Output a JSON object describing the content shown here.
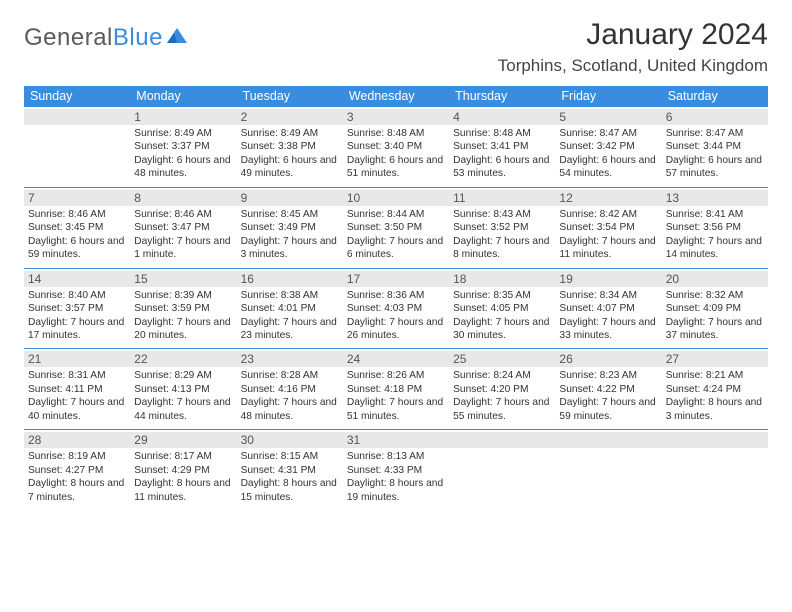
{
  "logo": {
    "word1": "General",
    "word2": "Blue"
  },
  "title": "January 2024",
  "location": "Torphins, Scotland, United Kingdom",
  "colors": {
    "header_bg": "#3a8dde",
    "header_text": "#ffffff",
    "daynum_bg": "#e8e8e8",
    "daynum_text": "#555555",
    "body_text": "#333333",
    "rule": "#3a8dde",
    "logo_gray": "#5a5a5a",
    "logo_blue": "#3a8dde"
  },
  "weekday_headers": [
    "Sunday",
    "Monday",
    "Tuesday",
    "Wednesday",
    "Thursday",
    "Friday",
    "Saturday"
  ],
  "weeks": [
    [
      null,
      {
        "n": "1",
        "sunrise": "8:49 AM",
        "sunset": "3:37 PM",
        "daylight": "6 hours and 48 minutes."
      },
      {
        "n": "2",
        "sunrise": "8:49 AM",
        "sunset": "3:38 PM",
        "daylight": "6 hours and 49 minutes."
      },
      {
        "n": "3",
        "sunrise": "8:48 AM",
        "sunset": "3:40 PM",
        "daylight": "6 hours and 51 minutes."
      },
      {
        "n": "4",
        "sunrise": "8:48 AM",
        "sunset": "3:41 PM",
        "daylight": "6 hours and 53 minutes."
      },
      {
        "n": "5",
        "sunrise": "8:47 AM",
        "sunset": "3:42 PM",
        "daylight": "6 hours and 54 minutes."
      },
      {
        "n": "6",
        "sunrise": "8:47 AM",
        "sunset": "3:44 PM",
        "daylight": "6 hours and 57 minutes."
      }
    ],
    [
      {
        "n": "7",
        "sunrise": "8:46 AM",
        "sunset": "3:45 PM",
        "daylight": "6 hours and 59 minutes."
      },
      {
        "n": "8",
        "sunrise": "8:46 AM",
        "sunset": "3:47 PM",
        "daylight": "7 hours and 1 minute."
      },
      {
        "n": "9",
        "sunrise": "8:45 AM",
        "sunset": "3:49 PM",
        "daylight": "7 hours and 3 minutes."
      },
      {
        "n": "10",
        "sunrise": "8:44 AM",
        "sunset": "3:50 PM",
        "daylight": "7 hours and 6 minutes."
      },
      {
        "n": "11",
        "sunrise": "8:43 AM",
        "sunset": "3:52 PM",
        "daylight": "7 hours and 8 minutes."
      },
      {
        "n": "12",
        "sunrise": "8:42 AM",
        "sunset": "3:54 PM",
        "daylight": "7 hours and 11 minutes."
      },
      {
        "n": "13",
        "sunrise": "8:41 AM",
        "sunset": "3:56 PM",
        "daylight": "7 hours and 14 minutes."
      }
    ],
    [
      {
        "n": "14",
        "sunrise": "8:40 AM",
        "sunset": "3:57 PM",
        "daylight": "7 hours and 17 minutes."
      },
      {
        "n": "15",
        "sunrise": "8:39 AM",
        "sunset": "3:59 PM",
        "daylight": "7 hours and 20 minutes."
      },
      {
        "n": "16",
        "sunrise": "8:38 AM",
        "sunset": "4:01 PM",
        "daylight": "7 hours and 23 minutes."
      },
      {
        "n": "17",
        "sunrise": "8:36 AM",
        "sunset": "4:03 PM",
        "daylight": "7 hours and 26 minutes."
      },
      {
        "n": "18",
        "sunrise": "8:35 AM",
        "sunset": "4:05 PM",
        "daylight": "7 hours and 30 minutes."
      },
      {
        "n": "19",
        "sunrise": "8:34 AM",
        "sunset": "4:07 PM",
        "daylight": "7 hours and 33 minutes."
      },
      {
        "n": "20",
        "sunrise": "8:32 AM",
        "sunset": "4:09 PM",
        "daylight": "7 hours and 37 minutes."
      }
    ],
    [
      {
        "n": "21",
        "sunrise": "8:31 AM",
        "sunset": "4:11 PM",
        "daylight": "7 hours and 40 minutes."
      },
      {
        "n": "22",
        "sunrise": "8:29 AM",
        "sunset": "4:13 PM",
        "daylight": "7 hours and 44 minutes."
      },
      {
        "n": "23",
        "sunrise": "8:28 AM",
        "sunset": "4:16 PM",
        "daylight": "7 hours and 48 minutes."
      },
      {
        "n": "24",
        "sunrise": "8:26 AM",
        "sunset": "4:18 PM",
        "daylight": "7 hours and 51 minutes."
      },
      {
        "n": "25",
        "sunrise": "8:24 AM",
        "sunset": "4:20 PM",
        "daylight": "7 hours and 55 minutes."
      },
      {
        "n": "26",
        "sunrise": "8:23 AM",
        "sunset": "4:22 PM",
        "daylight": "7 hours and 59 minutes."
      },
      {
        "n": "27",
        "sunrise": "8:21 AM",
        "sunset": "4:24 PM",
        "daylight": "8 hours and 3 minutes."
      }
    ],
    [
      {
        "n": "28",
        "sunrise": "8:19 AM",
        "sunset": "4:27 PM",
        "daylight": "8 hours and 7 minutes."
      },
      {
        "n": "29",
        "sunrise": "8:17 AM",
        "sunset": "4:29 PM",
        "daylight": "8 hours and 11 minutes."
      },
      {
        "n": "30",
        "sunrise": "8:15 AM",
        "sunset": "4:31 PM",
        "daylight": "8 hours and 15 minutes."
      },
      {
        "n": "31",
        "sunrise": "8:13 AM",
        "sunset": "4:33 PM",
        "daylight": "8 hours and 19 minutes."
      },
      null,
      null,
      null
    ]
  ],
  "labels": {
    "sunrise": "Sunrise:",
    "sunset": "Sunset:",
    "daylight": "Daylight:"
  }
}
